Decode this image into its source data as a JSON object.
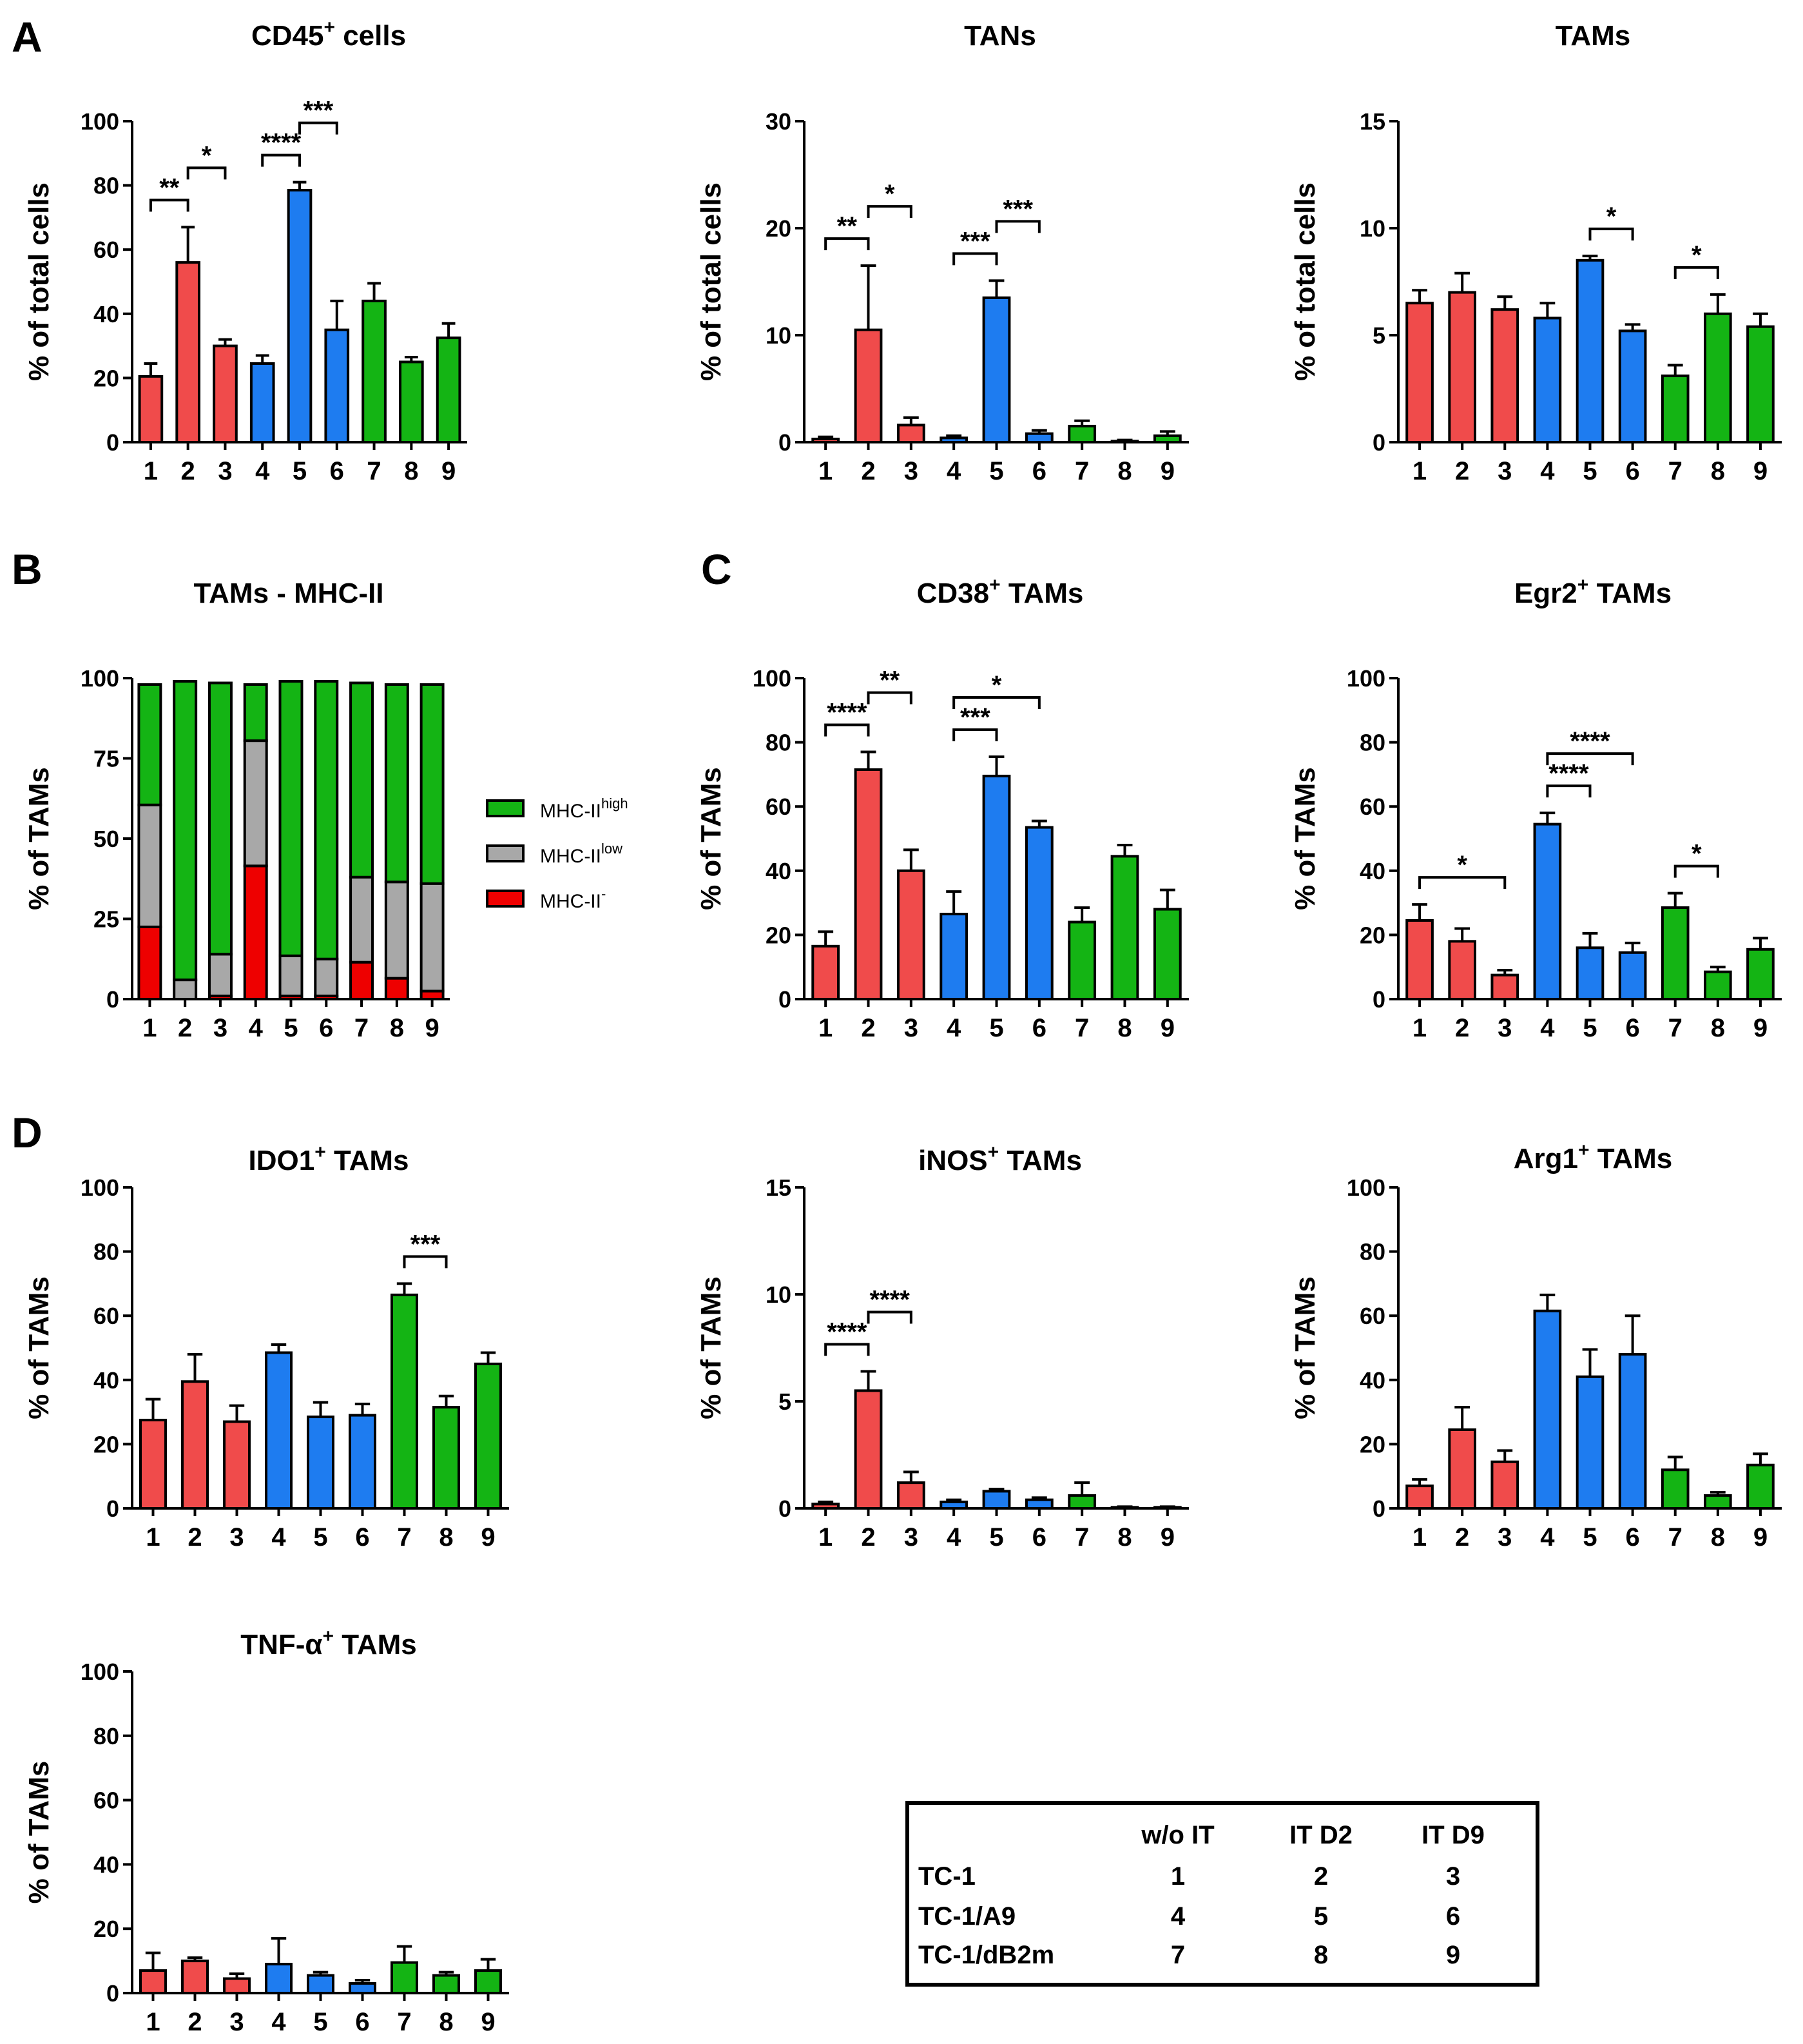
{
  "colors": {
    "red": "#f04b4b",
    "blue": "#1e7cf0",
    "green": "#14b414",
    "gray": "#a8a8a8",
    "mhc_neg": "#ee0000"
  },
  "panel_letters": [
    "A",
    "B",
    "C",
    "D"
  ],
  "chart_data": [
    {
      "id": "cd45",
      "type": "bar",
      "title": "CD45",
      "title_sup": "+",
      "title_rest": " cells",
      "ylabel": "% of total cells",
      "ylim": [
        0,
        100
      ],
      "yticks": [
        "0",
        "20",
        "40",
        "60",
        "80",
        "100"
      ],
      "categories": [
        "1",
        "2",
        "3",
        "4",
        "5",
        "6",
        "7",
        "8",
        "9"
      ],
      "values": [
        20.5,
        56,
        30,
        24.5,
        78.5,
        35,
        44,
        25,
        32.5
      ],
      "errors": [
        4,
        11,
        2,
        2.5,
        2.5,
        9,
        5.5,
        1.5,
        4.5
      ],
      "significance": [
        {
          "from": 1,
          "to": 2,
          "label": "**"
        },
        {
          "from": 2,
          "to": 3,
          "label": "*"
        },
        {
          "from": 4,
          "to": 5,
          "label": "****"
        },
        {
          "from": 5,
          "to": 6,
          "label": "***"
        }
      ]
    },
    {
      "id": "tans",
      "type": "bar",
      "title": "TANs",
      "title_sup": "",
      "title_rest": "",
      "ylabel": "% of total cells",
      "ylim": [
        0,
        30
      ],
      "yticks": [
        "0",
        "10",
        "20",
        "30"
      ],
      "categories": [
        "1",
        "2",
        "3",
        "4",
        "5",
        "6",
        "7",
        "8",
        "9"
      ],
      "values": [
        0.3,
        10.5,
        1.6,
        0.4,
        13.5,
        0.8,
        1.5,
        0.1,
        0.6
      ],
      "errors": [
        0.2,
        6,
        0.7,
        0.2,
        1.6,
        0.3,
        0.5,
        0.1,
        0.4
      ],
      "significance": [
        {
          "from": 1,
          "to": 2,
          "label": "**"
        },
        {
          "from": 2,
          "to": 3,
          "label": "*"
        },
        {
          "from": 4,
          "to": 5,
          "label": "***"
        },
        {
          "from": 5,
          "to": 6,
          "label": "***"
        }
      ]
    },
    {
      "id": "tams",
      "type": "bar",
      "title": "TAMs",
      "title_sup": "",
      "title_rest": "",
      "ylabel": "% of total cells",
      "ylim": [
        0,
        15
      ],
      "yticks": [
        "0",
        "5",
        "10",
        "15"
      ],
      "categories": [
        "1",
        "2",
        "3",
        "4",
        "5",
        "6",
        "7",
        "8",
        "9"
      ],
      "values": [
        6.5,
        7,
        6.2,
        5.8,
        8.5,
        5.2,
        3.1,
        6,
        5.4
      ],
      "errors": [
        0.6,
        0.9,
        0.6,
        0.7,
        0.2,
        0.3,
        0.5,
        0.9,
        0.6
      ],
      "significance": [
        {
          "from": 5,
          "to": 6,
          "label": "*"
        },
        {
          "from": 7,
          "to": 8,
          "label": "*"
        }
      ]
    },
    {
      "id": "mhc",
      "type": "stacked-bar",
      "title": "TAMs - MHC-II",
      "title_sup": "",
      "title_rest": "",
      "ylabel": "% of TAMs",
      "ylim": [
        0,
        100
      ],
      "yticks": [
        "0",
        "25",
        "50",
        "75",
        "100"
      ],
      "categories": [
        "1",
        "2",
        "3",
        "4",
        "5",
        "6",
        "7",
        "8",
        "9"
      ],
      "series": [
        {
          "name": "MHC-II-",
          "values": [
            22.5,
            0,
            1,
            41.5,
            1,
            1,
            11.5,
            6.5,
            2.5
          ]
        },
        {
          "name": "MHC-IIlow",
          "values": [
            38,
            6,
            13,
            39,
            12.5,
            11.5,
            26.5,
            30,
            33.5
          ]
        },
        {
          "name": "MHC-IIhigh",
          "values": [
            37.5,
            93,
            84.5,
            17.5,
            85.5,
            86.5,
            60.5,
            61.5,
            62
          ]
        }
      ],
      "legend": [
        {
          "base": "MHC-II",
          "sup": "high"
        },
        {
          "base": "MHC-II",
          "sup": "low"
        },
        {
          "base": "MHC-II",
          "sup": "-"
        }
      ]
    },
    {
      "id": "cd38",
      "type": "bar",
      "title": "CD38",
      "title_sup": "+",
      "title_rest": " TAMs",
      "ylabel": "% of TAMs",
      "ylim": [
        0,
        100
      ],
      "yticks": [
        "0",
        "20",
        "40",
        "60",
        "80",
        "100"
      ],
      "categories": [
        "1",
        "2",
        "3",
        "4",
        "5",
        "6",
        "7",
        "8",
        "9"
      ],
      "values": [
        16.5,
        71.5,
        40,
        26.5,
        69.5,
        53.5,
        24,
        44.5,
        28
      ],
      "errors": [
        4.5,
        5.5,
        6.5,
        7,
        6,
        2,
        4.5,
        3.5,
        6
      ],
      "significance": [
        {
          "from": 1,
          "to": 2,
          "label": "****"
        },
        {
          "from": 2,
          "to": 3,
          "label": "**"
        },
        {
          "from": 4,
          "to": 5,
          "label": "***"
        },
        {
          "from": 4,
          "to": 6,
          "label": "*"
        }
      ]
    },
    {
      "id": "egr2",
      "type": "bar",
      "title": "Egr2",
      "title_sup": "+",
      "title_rest": " TAMs",
      "ylabel": "% of TAMs",
      "ylim": [
        0,
        100
      ],
      "yticks": [
        "0",
        "20",
        "40",
        "60",
        "80",
        "100"
      ],
      "categories": [
        "1",
        "2",
        "3",
        "4",
        "5",
        "6",
        "7",
        "8",
        "9"
      ],
      "values": [
        24.5,
        18,
        7.5,
        54.5,
        16,
        14.5,
        28.5,
        8.5,
        15.5
      ],
      "errors": [
        5,
        4,
        1.5,
        3.5,
        4.5,
        3,
        4.5,
        1.5,
        3.5
      ],
      "significance": [
        {
          "from": 1,
          "to": 3,
          "label": "*"
        },
        {
          "from": 4,
          "to": 5,
          "label": "****"
        },
        {
          "from": 4,
          "to": 6,
          "label": "****"
        },
        {
          "from": 7,
          "to": 8,
          "label": "*"
        }
      ]
    },
    {
      "id": "ido1",
      "type": "bar",
      "title": "IDO1",
      "title_sup": "+",
      "title_rest": " TAMs",
      "ylabel": "% of TAMs",
      "ylim": [
        0,
        100
      ],
      "yticks": [
        "0",
        "20",
        "40",
        "60",
        "80",
        "100"
      ],
      "categories": [
        "1",
        "2",
        "3",
        "4",
        "5",
        "6",
        "7",
        "8",
        "9"
      ],
      "values": [
        27.5,
        39.5,
        27,
        48.5,
        28.5,
        29,
        66.5,
        31.5,
        45
      ],
      "errors": [
        6.5,
        8.5,
        5,
        2.5,
        4.5,
        3.5,
        3.5,
        3.5,
        3.5
      ],
      "significance": [
        {
          "from": 7,
          "to": 8,
          "label": "***"
        }
      ]
    },
    {
      "id": "inos",
      "type": "bar",
      "title": "iNOS",
      "title_sup": "+",
      "title_rest": " TAMs",
      "ylabel": "% of TAMs",
      "ylim": [
        0,
        15
      ],
      "yticks": [
        "0",
        "5",
        "10",
        "15"
      ],
      "categories": [
        "1",
        "2",
        "3",
        "4",
        "5",
        "6",
        "7",
        "8",
        "9"
      ],
      "values": [
        0.2,
        5.5,
        1.2,
        0.3,
        0.8,
        0.4,
        0.6,
        0.05,
        0.05
      ],
      "errors": [
        0.1,
        0.9,
        0.5,
        0.1,
        0.1,
        0.1,
        0.6,
        0.03,
        0.03
      ],
      "significance": [
        {
          "from": 1,
          "to": 2,
          "label": "****"
        },
        {
          "from": 2,
          "to": 3,
          "label": "****"
        }
      ]
    },
    {
      "id": "arg1",
      "type": "bar",
      "title": "Arg1",
      "title_sup": "+",
      "title_rest": " TAMs",
      "ylabel": "% of TAMs",
      "ylim": [
        0,
        100
      ],
      "yticks": [
        "0",
        "20",
        "40",
        "60",
        "80",
        "100"
      ],
      "categories": [
        "1",
        "2",
        "3",
        "4",
        "5",
        "6",
        "7",
        "8",
        "9"
      ],
      "values": [
        7,
        24.5,
        14.5,
        61.5,
        41,
        48,
        12,
        4,
        13.5
      ],
      "errors": [
        2,
        7,
        3.5,
        5,
        8.5,
        12,
        4,
        1,
        3.5
      ],
      "significance": []
    },
    {
      "id": "tnfa",
      "type": "bar",
      "title": "TNF-α",
      "title_sup": "+",
      "title_rest": " TAMs",
      "ylabel": "% of TAMs",
      "ylim": [
        0,
        100
      ],
      "yticks": [
        "0",
        "20",
        "40",
        "60",
        "80",
        "100"
      ],
      "categories": [
        "1",
        "2",
        "3",
        "4",
        "5",
        "6",
        "7",
        "8",
        "9"
      ],
      "values": [
        7,
        10,
        4.5,
        9,
        5.5,
        3,
        9.5,
        5.5,
        7
      ],
      "errors": [
        5.5,
        1,
        1.5,
        8,
        1,
        1,
        5,
        1,
        3.5
      ],
      "significance": []
    },
    {
      "id": "key",
      "type": "table",
      "columns": [
        "",
        "w/o IT",
        "IT D2",
        "IT D9"
      ],
      "rows": [
        [
          "TC-1",
          "1",
          "2",
          "3"
        ],
        [
          "TC-1/A9",
          "4",
          "5",
          "6"
        ],
        [
          "TC-1/dB2m",
          "7",
          "8",
          "9"
        ]
      ]
    }
  ]
}
